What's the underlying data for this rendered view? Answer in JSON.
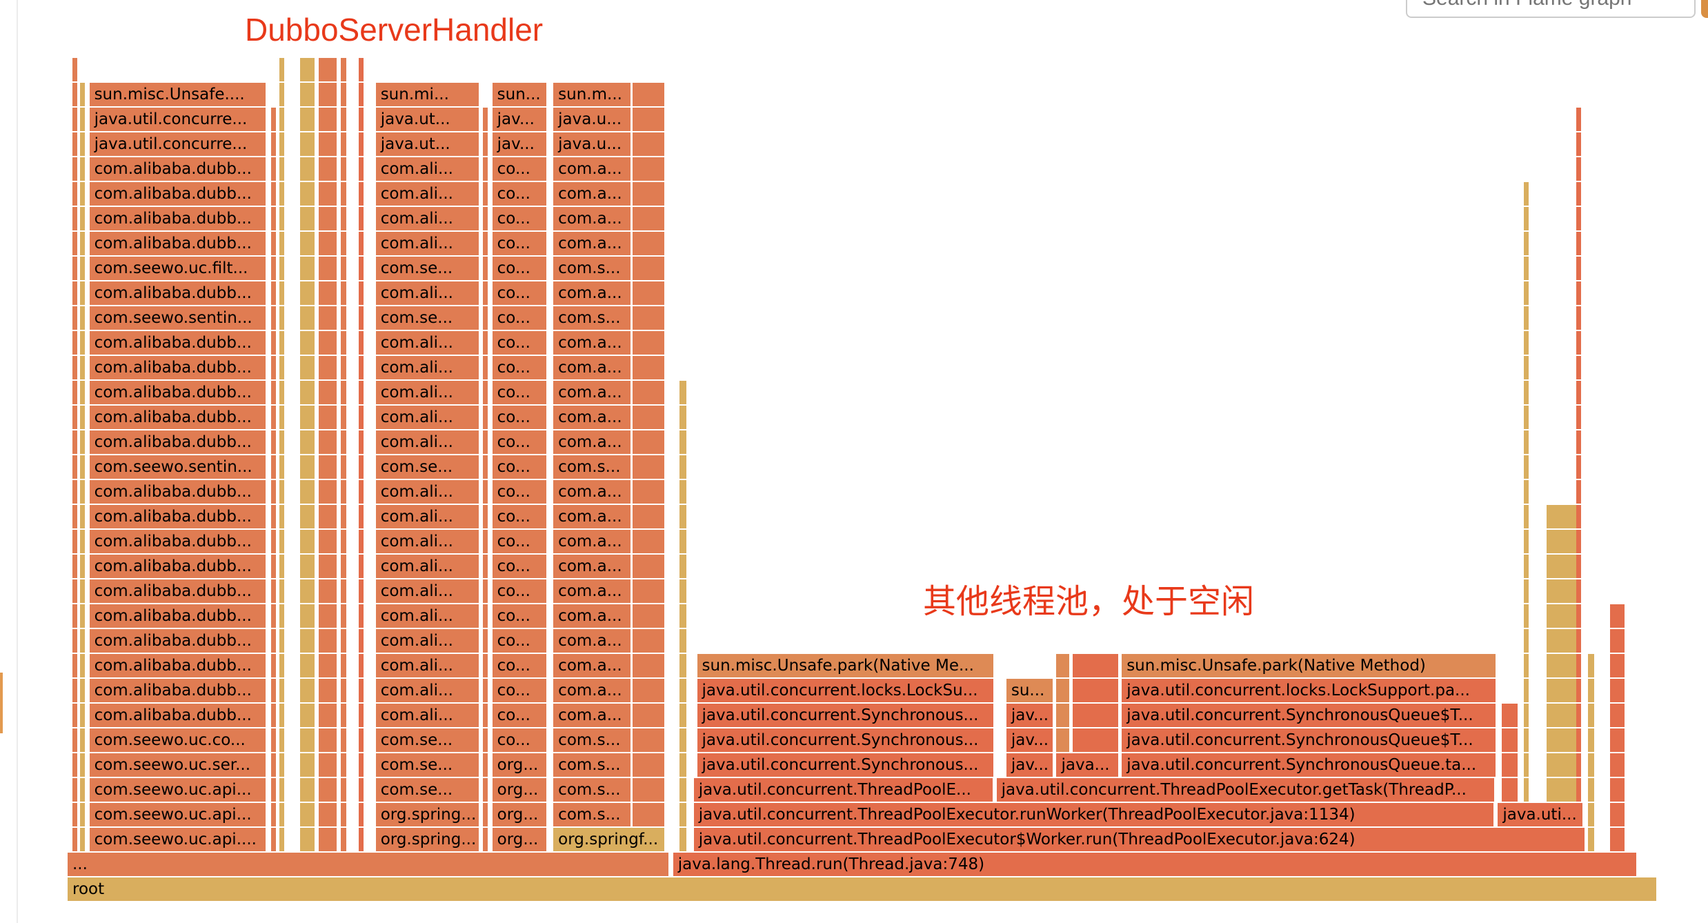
{
  "search": {
    "placeholder": "Search in Flame graph"
  },
  "annotations": {
    "dubbo": "DubboServerHandler",
    "idle": "其他线程池，处于空闲"
  },
  "colors": {
    "red": "#e36d4b",
    "orange": "#e07c52",
    "light": "#de8a55",
    "yellow": "#d9ae5e",
    "annotation": "#e8391a"
  },
  "flame": {
    "total_note_unit": "percent of root samples",
    "frames": [
      {
        "label": "root",
        "depth": 0,
        "start": 0,
        "width": 100,
        "color": "yellow"
      },
      {
        "label": "...",
        "depth": 1,
        "start": 0,
        "width": 37.88,
        "color": "orange"
      },
      {
        "label": "java.lang.Thread.run(Thread.java:748)",
        "depth": 1,
        "start": 38.08,
        "width": 60.68,
        "color": "red"
      },
      {
        "label": "java.util.concurrent.ThreadPoolExecutor$Worker.run(ThreadPoolExecutor.java:624)",
        "depth": 2,
        "start": 39.38,
        "width": 56.1,
        "color": "red"
      },
      {
        "label": "java.util.concurrent.ThreadPoolExecutor.runWorker(ThreadPoolExecutor.java:1134)",
        "depth": 3,
        "start": 39.38,
        "width": 50.4,
        "color": "red"
      },
      {
        "label": "java.uti...",
        "depth": 3,
        "start": 89.95,
        "width": 5.4,
        "color": "red"
      },
      {
        "label": "java.util.concurrent.ThreadPoolE...",
        "depth": 4,
        "start": 39.38,
        "width": 18.9,
        "color": "red"
      },
      {
        "label": "java.util.concurrent.ThreadPoolExecutor.getTask(ThreadP...",
        "depth": 4,
        "start": 58.42,
        "width": 31.4,
        "color": "red"
      },
      {
        "label": "java.util.concurrent.Synchronous...",
        "depth": 5,
        "start": 39.59,
        "width": 18.7,
        "color": "red"
      },
      {
        "label": "jav...",
        "depth": 5,
        "start": 59.04,
        "width": 3.0,
        "color": "red"
      },
      {
        "label": "java...",
        "depth": 5,
        "start": 62.19,
        "width": 3.97,
        "color": "red"
      },
      {
        "label": "java.util.concurrent.SynchronousQueue.ta...",
        "depth": 5,
        "start": 66.3,
        "width": 23.6,
        "color": "red"
      },
      {
        "label": "java.util.concurrent.Synchronous...",
        "depth": 6,
        "start": 39.59,
        "width": 18.7,
        "color": "red"
      },
      {
        "label": "jav...",
        "depth": 6,
        "start": 59.04,
        "width": 3.0,
        "color": "red"
      },
      {
        "label": "java.util.concurrent.SynchronousQueue$T...",
        "depth": 6,
        "start": 66.3,
        "width": 23.6,
        "color": "red"
      },
      {
        "label": "java.util.concurrent.Synchronous...",
        "depth": 7,
        "start": 39.59,
        "width": 18.7,
        "color": "red"
      },
      {
        "label": "jav...",
        "depth": 7,
        "start": 59.04,
        "width": 3.0,
        "color": "red"
      },
      {
        "label": "java.util.concurrent.SynchronousQueue$T...",
        "depth": 7,
        "start": 66.3,
        "width": 23.6,
        "color": "red"
      },
      {
        "label": "java.util.concurrent.locks.LockSu...",
        "depth": 8,
        "start": 39.59,
        "width": 18.7,
        "color": "red"
      },
      {
        "label": "su...",
        "depth": 8,
        "start": 59.04,
        "width": 3.0,
        "color": "light"
      },
      {
        "label": "java.util.concurrent.locks.LockSupport.pa...",
        "depth": 8,
        "start": 66.3,
        "width": 23.6,
        "color": "red"
      },
      {
        "label": "sun.misc.Unsafe.park(Native Me...",
        "depth": 9,
        "start": 39.59,
        "width": 18.7,
        "color": "light"
      },
      {
        "label": "sun.misc.Unsafe.park(Native Method)",
        "depth": 9,
        "start": 66.3,
        "width": 23.6,
        "color": "light"
      }
    ],
    "stacks": [
      {
        "start": 1.37,
        "width": 11.16,
        "from_depth": 2,
        "color": "orange",
        "labels": [
          "com.seewo.uc.api....",
          "com.seewo.uc.api...",
          "com.seewo.uc.api...",
          "com.seewo.uc.ser...",
          "com.seewo.uc.co...",
          "com.alibaba.dubb...",
          "com.alibaba.dubb...",
          "com.alibaba.dubb...",
          "com.alibaba.dubb...",
          "com.alibaba.dubb...",
          "com.alibaba.dubb...",
          "com.alibaba.dubb...",
          "com.alibaba.dubb...",
          "com.alibaba.dubb...",
          "com.alibaba.dubb...",
          "com.seewo.sentin...",
          "com.alibaba.dubb...",
          "com.alibaba.dubb...",
          "com.alibaba.dubb...",
          "com.alibaba.dubb...",
          "com.alibaba.dubb...",
          "com.seewo.sentin...",
          "com.alibaba.dubb...",
          "com.seewo.uc.filt...",
          "com.alibaba.dubb...",
          "com.alibaba.dubb...",
          "com.alibaba.dubb...",
          "com.alibaba.dubb...",
          "java.util.concurre...",
          "java.util.concurre...",
          "sun.misc.Unsafe...."
        ]
      },
      {
        "start": 19.38,
        "width": 6.58,
        "from_depth": 2,
        "color": "orange",
        "labels": [
          "org.spring...",
          "org.spring...",
          "com.se...",
          "com.se...",
          "com.se...",
          "com.ali...",
          "com.ali...",
          "com.ali...",
          "com.ali...",
          "com.ali...",
          "com.ali...",
          "com.ali...",
          "com.ali...",
          "com.ali...",
          "com.ali...",
          "com.se...",
          "com.ali...",
          "com.ali...",
          "com.ali...",
          "com.ali...",
          "com.ali...",
          "com.se...",
          "com.ali...",
          "com.se...",
          "com.ali...",
          "com.ali...",
          "com.ali...",
          "com.ali...",
          "java.ut...",
          "java.ut...",
          "sun.mi..."
        ]
      },
      {
        "start": 26.71,
        "width": 3.49,
        "from_depth": 2,
        "color": "orange",
        "labels": [
          "org...",
          "org...",
          "org...",
          "org...",
          "co...",
          "co...",
          "co...",
          "co...",
          "co...",
          "co...",
          "co...",
          "co...",
          "co...",
          "co...",
          "co...",
          "co...",
          "co...",
          "co...",
          "co...",
          "co...",
          "co...",
          "co...",
          "co...",
          "co...",
          "co...",
          "co...",
          "co...",
          "co...",
          "jav...",
          "jav...",
          "sun..."
        ]
      },
      {
        "start": 30.55,
        "width": 4.93,
        "from_depth": 3,
        "color": "orange",
        "labels": [
          "com.s...",
          "com.s...",
          "com.s...",
          "com.s...",
          "com.a...",
          "com.a...",
          "com.a...",
          "com.a...",
          "com.a...",
          "com.a...",
          "com.a...",
          "com.a...",
          "com.a...",
          "com.a...",
          "com.s...",
          "com.a...",
          "com.a...",
          "com.a...",
          "com.a...",
          "com.a...",
          "com.s...",
          "com.a...",
          "com.s...",
          "com.a...",
          "com.a...",
          "com.a...",
          "com.a...",
          "java.u...",
          "java.u...",
          "sun.m..."
        ]
      }
    ],
    "extra_labeled": [
      {
        "label": "org.springf...",
        "depth": 2,
        "start": 30.55,
        "width": 7.05,
        "color": "yellow"
      }
    ],
    "slivers": [
      {
        "start": 35.55,
        "width": 2.05,
        "from": 3,
        "to": 32,
        "color": "orange"
      },
      {
        "start": 15.8,
        "width": 1.2,
        "from": 2,
        "to": 33,
        "color": "orange"
      },
      {
        "start": 14.6,
        "width": 1.0,
        "from": 2,
        "to": 33,
        "color": "yellow"
      },
      {
        "start": 12.8,
        "width": 0.3,
        "from": 2,
        "to": 31,
        "color": "orange"
      },
      {
        "start": 13.3,
        "width": 0.4,
        "from": 2,
        "to": 33,
        "color": "yellow"
      },
      {
        "start": 17.2,
        "width": 0.4,
        "from": 2,
        "to": 33,
        "color": "orange"
      },
      {
        "start": 18.3,
        "width": 0.4,
        "from": 2,
        "to": 33,
        "color": "red"
      },
      {
        "start": 0.3,
        "width": 0.3,
        "from": 2,
        "to": 33,
        "color": "orange"
      },
      {
        "start": 0.8,
        "width": 0.3,
        "from": 2,
        "to": 32,
        "color": "yellow"
      },
      {
        "start": 26.1,
        "width": 0.3,
        "from": 2,
        "to": 31,
        "color": "orange"
      },
      {
        "start": 38.5,
        "width": 0.5,
        "from": 2,
        "to": 20,
        "color": "yellow"
      },
      {
        "start": 62.19,
        "width": 0.9,
        "from": 6,
        "to": 9,
        "color": "light"
      },
      {
        "start": 63.2,
        "width": 2.96,
        "from": 6,
        "to": 9,
        "color": "red"
      },
      {
        "start": 90.2,
        "width": 1.1,
        "from": 4,
        "to": 7,
        "color": "red"
      },
      {
        "start": 93.6,
        "width": 1.2,
        "from": 4,
        "to": 7,
        "color": "red"
      },
      {
        "start": 93.0,
        "width": 2.0,
        "from": 2,
        "to": 15,
        "color": "yellow"
      },
      {
        "start": 94.9,
        "width": 0.3,
        "from": 2,
        "to": 31,
        "color": "red"
      },
      {
        "start": 95.6,
        "width": 0.5,
        "from": 2,
        "to": 9,
        "color": "yellow"
      },
      {
        "start": 97.0,
        "width": 1.0,
        "from": 1,
        "to": 11,
        "color": "red"
      },
      {
        "start": 91.6,
        "width": 0.3,
        "from": 2,
        "to": 28,
        "color": "yellow"
      }
    ]
  }
}
